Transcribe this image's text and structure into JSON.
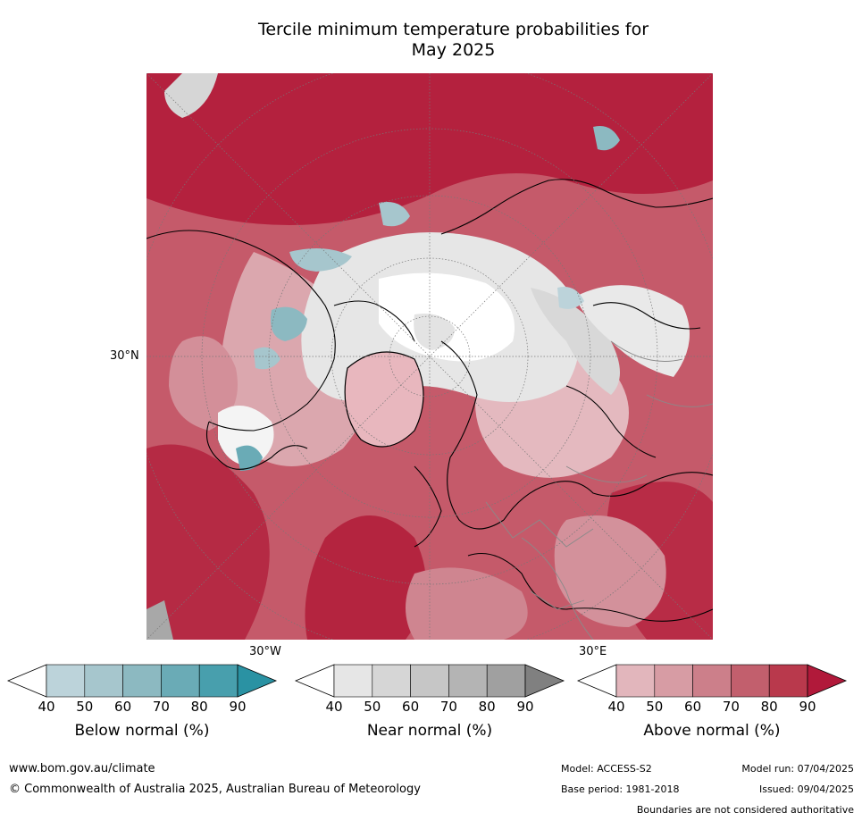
{
  "title_line1": "Tercile minimum temperature probabilities for",
  "title_line2": "May 2025",
  "map": {
    "labels": {
      "lat30n": "30°N",
      "lon30w": "30°W",
      "lon30e": "30°E"
    }
  },
  "colorbars": [
    {
      "title": "Below normal (%)",
      "ticks": [
        "40",
        "50",
        "60",
        "70",
        "80",
        "90"
      ],
      "colors": [
        "#ffffff",
        "#bcd3da",
        "#a6c6cd",
        "#8cb9c1",
        "#6aabb6",
        "#489fad",
        "#2a92a3"
      ]
    },
    {
      "title": "Near normal (%)",
      "ticks": [
        "40",
        "50",
        "60",
        "70",
        "80",
        "90"
      ],
      "colors": [
        "#ffffff",
        "#e6e6e6",
        "#d6d6d6",
        "#c6c6c6",
        "#b4b4b4",
        "#a0a0a0",
        "#808080"
      ]
    },
    {
      "title": "Above normal (%)",
      "ticks": [
        "40",
        "50",
        "60",
        "70",
        "80",
        "90"
      ],
      "colors": [
        "#ffffff",
        "#e2b6bc",
        "#d79ca4",
        "#cc7f8a",
        "#c25f6d",
        "#b9394c",
        "#b1193a"
      ]
    }
  ],
  "footer": {
    "website": "www.bom.gov.au/climate",
    "copyright": "© Commonwealth of Australia 2025, Australian Bureau of Meteorology",
    "model": "Model: ACCESS-S2",
    "base_period": "Base period: 1981-2018",
    "model_run": "Model run: 07/04/2025",
    "issued": "Issued: 09/04/2025",
    "disclaimer": "Boundaries are not considered authoritative"
  }
}
